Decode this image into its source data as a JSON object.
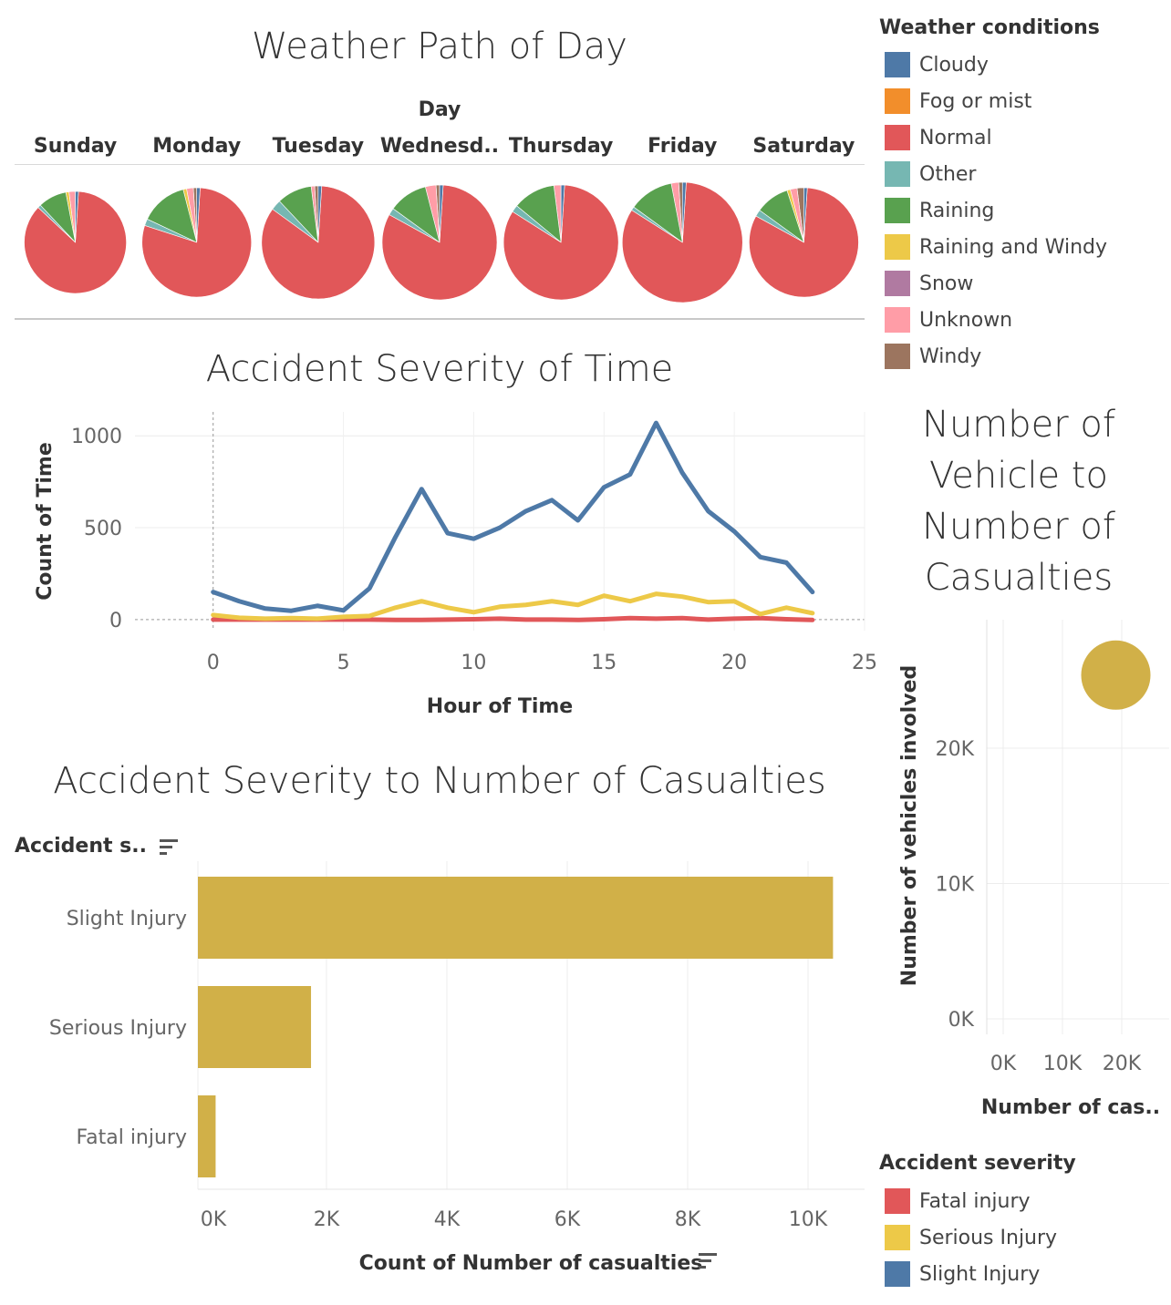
{
  "pie_section": {
    "title": "Weather Path of Day",
    "column_header": "Day",
    "days": [
      "Sunday",
      "Monday",
      "Tuesday",
      "Wednesd..",
      "Thursday",
      "Friday",
      "Saturday"
    ]
  },
  "weather_legend": {
    "title": "Weather conditions",
    "items": [
      {
        "label": "Cloudy",
        "color": "#4e79a7"
      },
      {
        "label": "Fog or mist",
        "color": "#f28e2b"
      },
      {
        "label": "Normal",
        "color": "#e15759"
      },
      {
        "label": "Other",
        "color": "#76b7b2"
      },
      {
        "label": "Raining",
        "color": "#59a14f"
      },
      {
        "label": "Raining and Windy",
        "color": "#edc948"
      },
      {
        "label": "Snow",
        "color": "#b07aa1"
      },
      {
        "label": "Unknown",
        "color": "#ff9da7"
      },
      {
        "label": "Windy",
        "color": "#9c755f"
      }
    ]
  },
  "line_section": {
    "title": "Accident Severity of Time",
    "ylabel": "Count of Time",
    "xlabel": "Hour of Time"
  },
  "bar_section": {
    "title": "Accident Severity to Number of Casualties",
    "row_header": "Accident s..",
    "xlabel": "Count of Number of casualties"
  },
  "scatter_section": {
    "title_lines": [
      "Number of",
      "Vehicle to",
      "Number of",
      "Casualties"
    ],
    "ylabel": "Number of vehicles involved",
    "xlabel": "Number of cas.."
  },
  "severity_legend": {
    "title": "Accident severity",
    "items": [
      {
        "label": "Fatal injury",
        "color": "#e15759"
      },
      {
        "label": "Serious Injury",
        "color": "#edc948"
      },
      {
        "label": "Slight Injury",
        "color": "#4e79a7"
      }
    ]
  },
  "chart_data": [
    {
      "type": "pie",
      "title": "Weather Path of Day",
      "categories": [
        "Cloudy",
        "Fog or mist",
        "Normal",
        "Other",
        "Raining",
        "Raining and Windy",
        "Snow",
        "Unknown",
        "Windy"
      ],
      "series": [
        {
          "name": "Sunday",
          "values": [
            1,
            0,
            86,
            1,
            9,
            1,
            0,
            2,
            0
          ]
        },
        {
          "name": "Monday",
          "values": [
            1,
            0,
            79,
            2,
            14,
            1,
            0,
            2,
            1
          ]
        },
        {
          "name": "Tuesday",
          "values": [
            1,
            0,
            84,
            3,
            10,
            0,
            0,
            1,
            1
          ]
        },
        {
          "name": "Wednesd..",
          "values": [
            1,
            0,
            82,
            2,
            11,
            0,
            0,
            3,
            1
          ]
        },
        {
          "name": "Thursday",
          "values": [
            1,
            0,
            83,
            2,
            12,
            0,
            0,
            2,
            0
          ]
        },
        {
          "name": "Friday",
          "values": [
            1,
            0,
            83,
            1,
            12,
            0,
            0,
            2,
            1
          ]
        },
        {
          "name": "Saturday",
          "values": [
            1,
            0,
            82,
            2,
            10,
            1,
            0,
            2,
            2
          ]
        }
      ]
    },
    {
      "type": "line",
      "title": "Accident Severity of Time",
      "xlabel": "Hour of Time",
      "ylabel": "Count of Time",
      "xlim": [
        -3,
        25
      ],
      "ylim": [
        -60,
        1130
      ],
      "xticks": [
        0,
        5,
        10,
        15,
        20,
        25
      ],
      "yticks": [
        0,
        500,
        1000
      ],
      "x": [
        0,
        1,
        2,
        3,
        4,
        5,
        6,
        7,
        8,
        9,
        10,
        11,
        12,
        13,
        14,
        15,
        16,
        17,
        18,
        19,
        20,
        21,
        22,
        23
      ],
      "series": [
        {
          "name": "Slight Injury",
          "color": "#4e79a7",
          "values": [
            150,
            100,
            60,
            48,
            75,
            50,
            170,
            450,
            710,
            470,
            440,
            500,
            590,
            650,
            540,
            720,
            790,
            1070,
            800,
            590,
            480,
            340,
            310,
            150
          ]
        },
        {
          "name": "Serious Injury",
          "color": "#edc948",
          "values": [
            25,
            10,
            5,
            8,
            5,
            15,
            20,
            65,
            100,
            65,
            40,
            70,
            80,
            100,
            80,
            130,
            100,
            140,
            125,
            95,
            100,
            30,
            65,
            35
          ]
        },
        {
          "name": "Fatal injury",
          "color": "#e15759",
          "values": [
            0,
            0,
            0,
            0,
            0,
            0,
            0,
            -2,
            -2,
            0,
            2,
            5,
            0,
            0,
            -2,
            2,
            8,
            5,
            8,
            0,
            5,
            8,
            2,
            -2
          ]
        }
      ]
    },
    {
      "type": "bar",
      "title": "Accident Severity to Number of Casualties",
      "xlabel": "Count of Number of casualties",
      "categories": [
        "Slight Injury",
        "Serious Injury",
        "Fatal injury"
      ],
      "values": [
        10415,
        1743,
        158
      ],
      "xlim": [
        0,
        11000
      ],
      "xticks": [
        0,
        2000,
        4000,
        6000,
        8000,
        10000
      ],
      "xtick_labels": [
        "0K",
        "2K",
        "4K",
        "6K",
        "8K",
        "10K"
      ],
      "color": "#d1b048"
    },
    {
      "type": "scatter",
      "title": "Number of Vehicle to Number of Casualties",
      "xlabel": "Number of cas..",
      "ylabel": "Number of vehicles involved",
      "x": [
        19000
      ],
      "y": [
        25400
      ],
      "color": "#d1b048",
      "xticks": [
        0,
        10000,
        20000
      ],
      "xtick_labels": [
        "0K",
        "10K",
        "20K"
      ],
      "yticks": [
        0,
        10000,
        20000
      ],
      "ytick_labels": [
        "0K",
        "10K",
        "20K"
      ]
    }
  ]
}
